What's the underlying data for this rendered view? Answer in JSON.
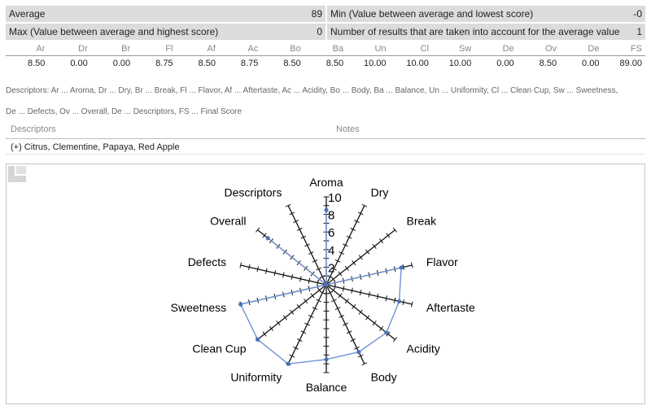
{
  "summary": {
    "average_label": "Average",
    "average_value": "89",
    "min_label": "Min (Value between average and lowest score)",
    "min_value": "-0",
    "max_label": "Max (Value between average and highest score)",
    "max_value": "0",
    "count_label": "Number of results that are taken into account for the average value",
    "count_value": "1"
  },
  "scores": {
    "headers": [
      "Ar",
      "Dr",
      "Br",
      "Fl",
      "Af",
      "Ac",
      "Bo",
      "Ba",
      "Un",
      "Cl",
      "Sw",
      "De",
      "Ov",
      "De",
      "FS"
    ],
    "values": [
      "8.50",
      "0.00",
      "0.00",
      "8.75",
      "8.50",
      "8.75",
      "8.50",
      "8.50",
      "10.00",
      "10.00",
      "10.00",
      "0.00",
      "8.50",
      "0.00",
      "89.00"
    ]
  },
  "legend": {
    "line1": "Descriptors: Ar ... Aroma, Dr ... Dry, Br ... Break, Fl ... Flavor, Af ... Aftertaste, Ac ... Acidity, Bo ... Body, Ba ... Balance, Un ... Uniformity, Cl ... Clean Cup, Sw ... Sweetness,",
    "line2": "De ... Defects, Ov ... Overall, De ... Descriptors, FS ... Final Score"
  },
  "descriptors": {
    "head_label": "Descriptors",
    "notes_label": "Notes",
    "value": "(+) Citrus, Clementine, Papaya, Red Apple"
  },
  "chart_data": {
    "type": "radar",
    "categories": [
      "Aroma",
      "Dry",
      "Break",
      "Flavor",
      "Aftertaste",
      "Acidity",
      "Body",
      "Balance",
      "Uniformity",
      "Clean Cup",
      "Sweetness",
      "Defects",
      "Overall",
      "Descriptors"
    ],
    "values": [
      8.5,
      0,
      0,
      8.75,
      8.5,
      8.75,
      8.5,
      8.5,
      10,
      10,
      10,
      0,
      8.5,
      0
    ],
    "rlim": [
      0,
      10
    ],
    "tick_labels": [
      "2",
      "4",
      "6",
      "8",
      "10"
    ],
    "series_color": "#6f93d6",
    "marker_color": "#4a72b8"
  }
}
